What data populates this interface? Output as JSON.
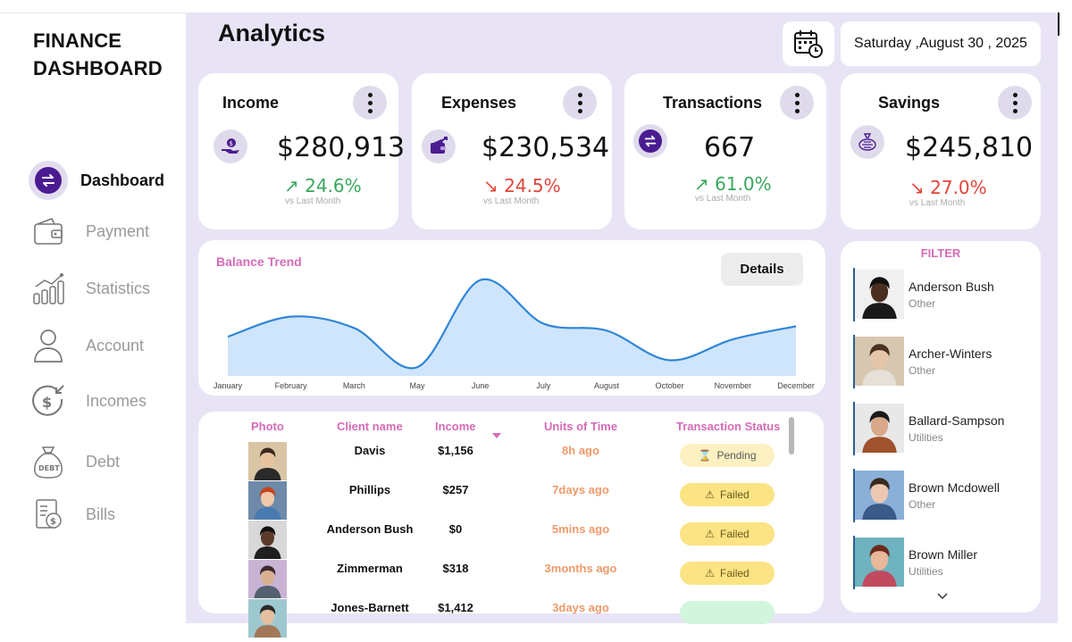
{
  "sidebar": {
    "brand_line1": "FINANCE",
    "brand_line2": "DASHBOARD",
    "items": [
      {
        "label": "Dashboard",
        "icon": "exchange-icon",
        "active": true
      },
      {
        "label": "Payment",
        "icon": "wallet-icon"
      },
      {
        "label": "Statistics",
        "icon": "bar-chart-icon"
      },
      {
        "label": "Account",
        "icon": "user-icon"
      },
      {
        "label": "Incomes",
        "icon": "income-icon"
      },
      {
        "label": "Debt",
        "icon": "debt-bag-icon"
      },
      {
        "label": "Bills",
        "icon": "bill-icon"
      }
    ]
  },
  "header": {
    "title": "Analytics",
    "date": "Saturday ,August 30 , 2025"
  },
  "kpis": [
    {
      "title": "Income",
      "value": "$280,913",
      "change": "↗ 24.6%",
      "direction": "up",
      "sub": "vs Last Month",
      "icon": "money-hand-icon"
    },
    {
      "title": "Expenses",
      "value": "$230,534",
      "change": "↘ 24.5%",
      "direction": "down",
      "sub": "vs Last Month",
      "icon": "wallet-out-icon"
    },
    {
      "title": "Transactions",
      "value": "667",
      "change": "↗ 61.0%",
      "direction": "up",
      "sub": "vs Last Month",
      "icon": "exchange-icon"
    },
    {
      "title": "Savings",
      "value": "$245,810",
      "change": "↘ 27.0%",
      "direction": "down",
      "sub": "vs Last Month",
      "icon": "piggy-icon"
    }
  ],
  "chart": {
    "details_label": "Details"
  },
  "chart_data": {
    "type": "area",
    "title": "Balance Trend",
    "categories": [
      "January",
      "February",
      "March",
      "May",
      "June",
      "July",
      "August",
      "October",
      "November",
      "December"
    ],
    "values": [
      45,
      68,
      55,
      10,
      110,
      60,
      52,
      18,
      42,
      57
    ],
    "ylim": [
      0,
      125
    ],
    "color": "#2f86d6",
    "fill": "#cfe5fb",
    "grid": false,
    "legend": "none"
  },
  "table": {
    "headers": [
      "Photo",
      "Client name",
      "Income",
      "Units of Time",
      "Transaction Status"
    ],
    "rows": [
      {
        "name": "Davis",
        "income": "$1,156",
        "time": "8h ago",
        "status": "Pending",
        "status_type": "pending"
      },
      {
        "name": "Phillips",
        "income": "$257",
        "time": "7days ago",
        "status": "Failed",
        "status_type": "failed"
      },
      {
        "name": "Anderson Bush",
        "income": "$0",
        "time": "5mins ago",
        "status": "Failed",
        "status_type": "failed"
      },
      {
        "name": "Zimmerman",
        "income": "$318",
        "time": "3months ago",
        "status": "Failed",
        "status_type": "failed"
      },
      {
        "name": "Jones-Barnett",
        "income": "$1,412",
        "time": "3days ago",
        "status": "",
        "status_type": "success"
      }
    ]
  },
  "filter": {
    "title": "FILTER",
    "people": [
      {
        "name": "Anderson Bush",
        "category": "Other"
      },
      {
        "name": "Archer-Winters",
        "category": "Other"
      },
      {
        "name": "Ballard-Sampson",
        "category": "Utilities"
      },
      {
        "name": "Brown Mcdowell",
        "category": "Other"
      },
      {
        "name": "Brown Miller",
        "category": "Utilities"
      }
    ]
  },
  "colors": {
    "accent": "#4b1c91",
    "pink": "#d46bb8",
    "up": "#3aa75c",
    "down": "#e0453a",
    "bg": "#e9e4f5"
  }
}
